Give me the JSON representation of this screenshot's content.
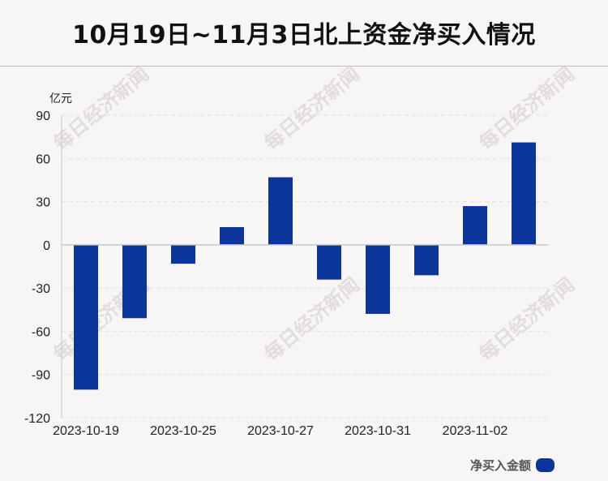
{
  "page": {
    "title": "10月19日~11月3日北上资金净买入情况",
    "watermark": "每日经济新闻"
  },
  "colors": {
    "bar": "#0b3599",
    "axis": "#c7c7c7",
    "grid": "#e4e0e1",
    "text": "#222222"
  },
  "chart_data": {
    "type": "bar",
    "title": "10月19日~11月3日北上资金净买入情况",
    "unit_label": "亿元",
    "xlabel": "",
    "ylabel": "",
    "ylim": [
      -120,
      90
    ],
    "yticks": [
      90,
      60,
      30,
      0,
      -30,
      -60,
      -90,
      -120
    ],
    "categories": [
      "2023-10-19",
      "",
      "2023-10-25",
      "",
      "2023-10-27",
      "",
      "2023-10-31",
      "",
      "2023-11-02",
      ""
    ],
    "x_tick_labels": [
      "2023-10-19",
      "2023-10-25",
      "2023-10-27",
      "2023-10-31",
      "2023-11-02"
    ],
    "series": [
      {
        "name": "净买入金额",
        "values": [
          -100.5,
          -50.9,
          -13.1,
          12.3,
          46.9,
          -24.1,
          -47.9,
          -21.1,
          26.9,
          71.1
        ]
      }
    ],
    "grid": true,
    "legend_position": "bottom-right"
  }
}
